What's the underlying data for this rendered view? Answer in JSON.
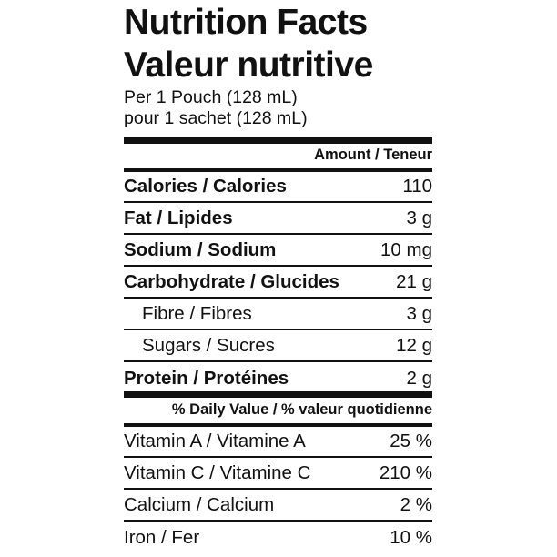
{
  "title_en": "Nutrition Facts",
  "title_fr": "Valeur nutritive",
  "serving_en": "Per 1 Pouch (128 mL)",
  "serving_fr": "pour 1 sachet (128 mL)",
  "amount_header": "Amount / Teneur",
  "nutrients": [
    {
      "name": "Calories / Calories",
      "value": "110"
    },
    {
      "name": "Fat / Lipides",
      "value": "3 g"
    },
    {
      "name": "Sodium / Sodium",
      "value": "10 mg"
    },
    {
      "name": "Carbohydrate / Glucides",
      "value": "21 g"
    },
    {
      "name": "Fibre / Fibres",
      "value": "3 g"
    },
    {
      "name": "Sugars / Sucres",
      "value": "12 g"
    },
    {
      "name": "Protein / Protéines",
      "value": "2 g"
    }
  ],
  "dv_header": "% Daily Value / % valeur quotidienne",
  "vitamins": [
    {
      "name": "Vitamin A / Vitamine A",
      "value": "25 %"
    },
    {
      "name": "Vitamin C / Vitamine C",
      "value": "210 %"
    },
    {
      "name": "Calcium / Calcium",
      "value": "2 %"
    },
    {
      "name": "Iron / Fer",
      "value": "10 %"
    }
  ]
}
